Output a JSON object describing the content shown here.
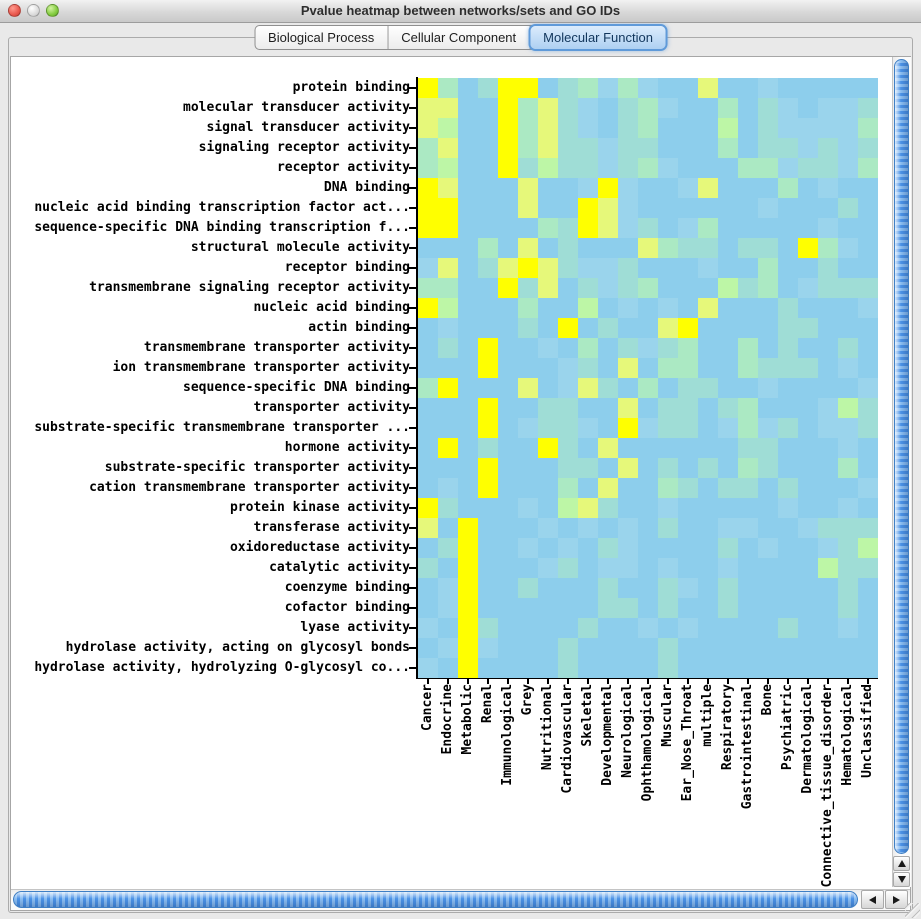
{
  "window": {
    "title": "Pvalue heatmap between networks/sets and GO IDs",
    "traffic_lights": [
      {
        "name": "close",
        "color": "#e9594e"
      },
      {
        "name": "minimize",
        "color": "#d9d9d9"
      },
      {
        "name": "zoom",
        "color": "#83cc3f"
      }
    ]
  },
  "tabs": [
    {
      "label": "Biological Process",
      "selected": false
    },
    {
      "label": "Cellular Component",
      "selected": false
    },
    {
      "label": "Molecular Function",
      "selected": true
    }
  ],
  "accent_colors": {
    "tab_selected_border": "#5f9ad9",
    "tab_selected_fill": "#b3d4f3",
    "scrollbar_thumb_blue": "#4c92e6"
  },
  "chart_data": {
    "type": "heatmap",
    "title": "Pvalue heatmap between networks/sets and GO IDs",
    "rows": [
      "protein binding",
      "molecular transducer activity",
      "signal transducer activity",
      "signaling receptor activity",
      "receptor activity",
      "DNA binding",
      "nucleic acid binding transcription factor act...",
      "sequence-specific DNA binding transcription f...",
      "structural molecule activity",
      "receptor binding",
      "transmembrane signaling receptor activity",
      "nucleic acid binding",
      "actin binding",
      "transmembrane transporter activity",
      "ion transmembrane transporter activity",
      "sequence-specific DNA binding",
      "transporter activity",
      "substrate-specific transmembrane transporter ...",
      "hormone activity",
      "substrate-specific transporter activity",
      "cation transmembrane transporter activity",
      "protein kinase activity",
      "transferase activity",
      "oxidoreductase activity",
      "catalytic activity",
      "coenzyme binding",
      "cofactor binding",
      "lyase activity",
      "hydrolase activity, acting on glycosyl bonds",
      "hydrolase activity, hydrolyzing O-glycosyl co..."
    ],
    "columns": [
      "Cancer",
      "Endocrine",
      "Metabolic",
      "Renal",
      "Immunological",
      "Grey",
      "Nutritional",
      "Cardiovascular",
      "Skeletal",
      "Developmental",
      "Neurological",
      "Ophthamological",
      "Muscular",
      "Ear_Nose_Throat",
      "multiple",
      "Respiratory",
      "Gastrointestinal",
      "Bone",
      "Psychiatric",
      "Dermatological",
      "Connective_tissue_disorder",
      "Hematological",
      "Unclassified"
    ],
    "palette": [
      "#8DCEEC",
      "#9AD4EC",
      "#9FDDD6",
      "#ABE9C3",
      "#BDF6A6",
      "#E6F87A",
      "#FFFF00"
    ],
    "value_levels": {
      "min": 0,
      "max": 6,
      "description": "0 = base blue (low), 6 = bright yellow (high)"
    },
    "legend_position": "none",
    "grid": false,
    "values": [
      [
        6,
        3,
        0,
        2,
        6,
        6,
        0,
        2,
        3,
        1,
        3,
        1,
        0,
        0,
        5,
        0,
        0,
        1,
        0,
        0,
        0,
        0,
        0
      ],
      [
        5,
        5,
        0,
        0,
        6,
        3,
        5,
        2,
        1,
        0,
        2,
        3,
        1,
        0,
        0,
        3,
        0,
        2,
        1,
        0,
        1,
        1,
        2
      ],
      [
        5,
        4,
        0,
        0,
        6,
        3,
        5,
        2,
        1,
        0,
        2,
        3,
        0,
        0,
        0,
        4,
        0,
        2,
        1,
        1,
        1,
        1,
        3
      ],
      [
        3,
        5,
        0,
        0,
        6,
        3,
        5,
        2,
        2,
        1,
        2,
        2,
        0,
        0,
        0,
        3,
        0,
        2,
        2,
        1,
        2,
        1,
        2
      ],
      [
        3,
        4,
        0,
        0,
        6,
        2,
        4,
        2,
        2,
        1,
        2,
        3,
        1,
        0,
        0,
        0,
        3,
        3,
        1,
        2,
        2,
        1,
        3
      ],
      [
        6,
        5,
        0,
        0,
        0,
        5,
        0,
        0,
        1,
        6,
        1,
        0,
        0,
        1,
        5,
        0,
        0,
        0,
        3,
        0,
        1,
        0,
        0
      ],
      [
        6,
        6,
        0,
        0,
        0,
        5,
        0,
        0,
        6,
        5,
        1,
        0,
        0,
        0,
        0,
        0,
        0,
        1,
        0,
        0,
        0,
        2,
        0
      ],
      [
        6,
        6,
        0,
        0,
        0,
        0,
        3,
        2,
        6,
        5,
        1,
        2,
        0,
        1,
        3,
        0,
        0,
        0,
        0,
        0,
        1,
        0,
        0
      ],
      [
        0,
        0,
        0,
        3,
        0,
        5,
        0,
        2,
        0,
        0,
        0,
        5,
        3,
        2,
        2,
        0,
        2,
        2,
        0,
        6,
        3,
        1,
        0
      ],
      [
        1,
        5,
        0,
        2,
        5,
        6,
        5,
        2,
        1,
        1,
        2,
        0,
        0,
        0,
        1,
        0,
        0,
        3,
        0,
        0,
        2,
        0,
        0
      ],
      [
        3,
        3,
        0,
        0,
        6,
        2,
        5,
        0,
        2,
        1,
        2,
        3,
        0,
        0,
        0,
        4,
        2,
        3,
        0,
        1,
        2,
        2,
        2
      ],
      [
        6,
        4,
        0,
        0,
        0,
        3,
        0,
        0,
        4,
        0,
        1,
        0,
        1,
        0,
        5,
        0,
        0,
        0,
        2,
        0,
        0,
        0,
        1
      ],
      [
        0,
        1,
        0,
        0,
        0,
        2,
        0,
        6,
        0,
        2,
        0,
        0,
        5,
        6,
        0,
        0,
        0,
        0,
        2,
        2,
        0,
        0,
        0
      ],
      [
        0,
        2,
        0,
        6,
        0,
        0,
        1,
        0,
        3,
        0,
        2,
        1,
        2,
        3,
        0,
        0,
        3,
        0,
        2,
        0,
        0,
        2,
        0
      ],
      [
        0,
        0,
        0,
        6,
        0,
        0,
        0,
        1,
        2,
        0,
        5,
        0,
        3,
        3,
        0,
        0,
        3,
        2,
        2,
        2,
        0,
        1,
        0
      ],
      [
        3,
        6,
        0,
        0,
        0,
        5,
        0,
        1,
        5,
        2,
        0,
        3,
        0,
        2,
        2,
        0,
        0,
        1,
        0,
        0,
        0,
        0,
        1
      ],
      [
        0,
        0,
        0,
        6,
        0,
        0,
        2,
        2,
        0,
        0,
        5,
        0,
        2,
        2,
        0,
        2,
        3,
        0,
        0,
        0,
        1,
        4,
        2
      ],
      [
        0,
        0,
        0,
        6,
        0,
        1,
        2,
        2,
        1,
        0,
        6,
        1,
        2,
        2,
        0,
        1,
        3,
        1,
        2,
        0,
        1,
        1,
        2
      ],
      [
        0,
        6,
        0,
        2,
        0,
        0,
        6,
        2,
        0,
        5,
        0,
        0,
        0,
        0,
        0,
        0,
        2,
        2,
        0,
        0,
        0,
        1,
        0
      ],
      [
        0,
        0,
        0,
        6,
        0,
        0,
        0,
        2,
        2,
        0,
        5,
        0,
        2,
        0,
        2,
        0,
        3,
        2,
        0,
        0,
        0,
        3,
        0
      ],
      [
        0,
        1,
        0,
        6,
        0,
        0,
        0,
        3,
        0,
        5,
        0,
        0,
        3,
        2,
        0,
        2,
        2,
        0,
        2,
        0,
        0,
        0,
        1
      ],
      [
        6,
        2,
        0,
        0,
        0,
        1,
        0,
        4,
        5,
        2,
        0,
        0,
        1,
        0,
        0,
        0,
        0,
        0,
        1,
        0,
        0,
        1,
        0
      ],
      [
        5,
        0,
        6,
        0,
        0,
        0,
        1,
        0,
        1,
        0,
        1,
        0,
        2,
        0,
        0,
        1,
        1,
        0,
        0,
        1,
        2,
        2,
        2
      ],
      [
        0,
        2,
        6,
        0,
        0,
        1,
        0,
        1,
        0,
        2,
        1,
        0,
        0,
        0,
        0,
        2,
        0,
        1,
        0,
        0,
        1,
        2,
        4
      ],
      [
        2,
        0,
        6,
        0,
        0,
        0,
        1,
        2,
        0,
        1,
        1,
        0,
        1,
        0,
        0,
        1,
        0,
        0,
        0,
        0,
        4,
        2,
        2
      ],
      [
        0,
        1,
        6,
        0,
        0,
        2,
        0,
        0,
        0,
        2,
        0,
        0,
        2,
        1,
        0,
        2,
        0,
        0,
        0,
        0,
        0,
        2,
        0
      ],
      [
        0,
        1,
        6,
        0,
        0,
        0,
        0,
        0,
        0,
        2,
        2,
        0,
        2,
        0,
        0,
        2,
        0,
        0,
        0,
        0,
        0,
        2,
        0
      ],
      [
        1,
        0,
        6,
        2,
        0,
        0,
        0,
        0,
        2,
        0,
        0,
        1,
        0,
        1,
        0,
        0,
        0,
        0,
        2,
        0,
        0,
        1,
        0
      ],
      [
        0,
        1,
        6,
        1,
        0,
        0,
        0,
        2,
        0,
        0,
        0,
        0,
        2,
        0,
        0,
        0,
        0,
        0,
        0,
        0,
        0,
        0,
        0
      ],
      [
        1,
        0,
        6,
        0,
        0,
        0,
        0,
        2,
        0,
        0,
        0,
        0,
        2,
        0,
        0,
        0,
        0,
        0,
        0,
        0,
        0,
        0,
        0
      ]
    ]
  }
}
